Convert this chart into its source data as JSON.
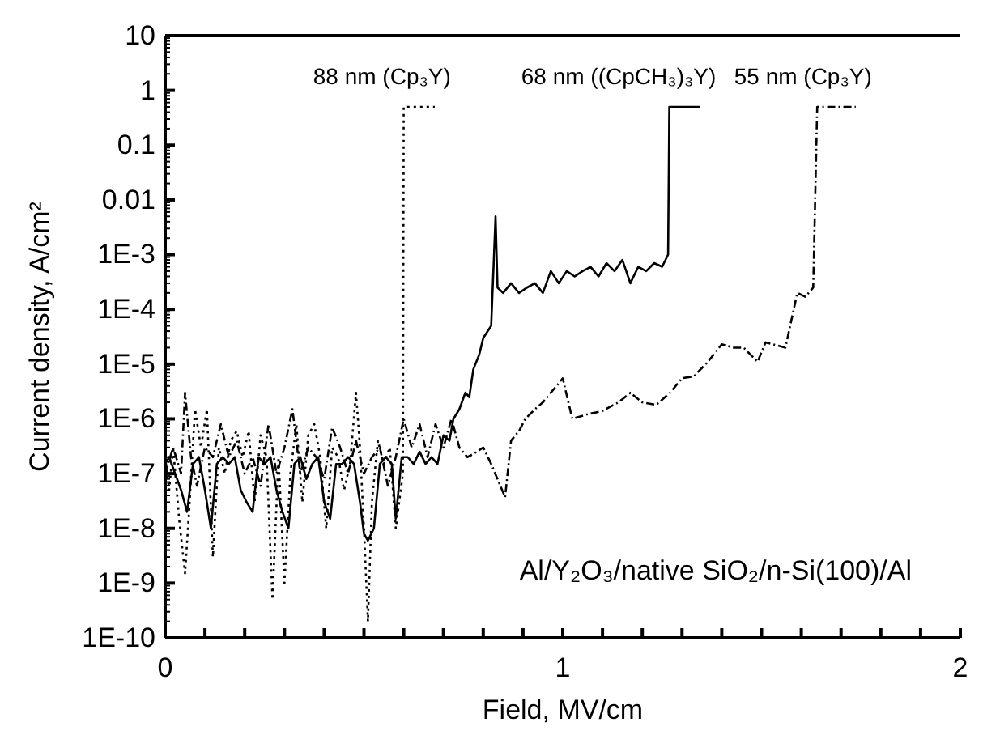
{
  "chart_data": {
    "type": "line",
    "xlabel": "Field, MV/cm",
    "ylabel": "Current density, A/cm²",
    "log": "y",
    "legend": false,
    "grid": false,
    "xlim": [
      0,
      2
    ],
    "xticks": [
      0,
      {
        "value": 0.1,
        "label": null
      },
      {
        "value": 0.2,
        "label": null
      },
      {
        "value": 0.3,
        "label": null
      },
      {
        "value": 0.4,
        "label": null
      },
      {
        "value": 0.5,
        "label": null
      },
      {
        "value": 0.6,
        "label": null
      },
      {
        "value": 0.7,
        "label": null
      },
      {
        "value": 0.8,
        "label": null
      },
      {
        "value": 0.9,
        "label": null
      },
      1,
      {
        "value": 1.1,
        "label": null
      },
      {
        "value": 1.2,
        "label": null
      },
      {
        "value": 1.3,
        "label": null
      },
      {
        "value": 1.4,
        "label": null
      },
      {
        "value": 1.5,
        "label": null
      },
      {
        "value": 1.6,
        "label": null
      },
      {
        "value": 1.7,
        "label": null
      },
      {
        "value": 1.8,
        "label": null
      },
      {
        "value": 1.9,
        "label": null
      },
      2
    ],
    "ylim": [
      1e-10,
      10
    ],
    "yticks": [
      {
        "value": 1e-10,
        "label": "1E-10"
      },
      {
        "value": 1e-09,
        "label": "1E-9"
      },
      {
        "value": 1e-08,
        "label": "1E-8"
      },
      {
        "value": 1e-07,
        "label": "1E-7"
      },
      {
        "value": 1e-06,
        "label": "1E-6"
      },
      {
        "value": 1e-05,
        "label": "1E-5"
      },
      {
        "value": 0.0001,
        "label": "1E-4"
      },
      {
        "value": 0.001,
        "label": "1E-3"
      },
      0.01,
      0.1,
      1,
      10
    ],
    "annotations": [
      "Al/Y₂O₃/native SiO₂/n-Si(100)/Al"
    ],
    "series": [
      {
        "name": "88 nm (Cp₃Y)",
        "color": "#000000",
        "line_style": "dotted",
        "x": [
          0,
          0.01,
          0.02,
          0.035,
          0.05,
          0.06,
          0.075,
          0.09,
          0.105,
          0.12,
          0.135,
          0.15,
          0.165,
          0.18,
          0.195,
          0.21,
          0.225,
          0.24,
          0.255,
          0.27,
          0.285,
          0.3,
          0.315,
          0.33,
          0.345,
          0.36,
          0.375,
          0.39,
          0.405,
          0.42,
          0.435,
          0.45,
          0.465,
          0.48,
          0.49,
          0.5,
          0.51,
          0.52,
          0.535,
          0.55,
          0.565,
          0.58,
          0.598,
          0.6,
          0.678
        ],
        "values": [
          2e-07,
          5e-08,
          3e-07,
          1.5e-08,
          1.5e-09,
          2e-08,
          1.5e-06,
          3e-07,
          1.5e-06,
          3e-09,
          3e-07,
          1e-07,
          4e-07,
          6e-07,
          2e-07,
          6e-07,
          3e-08,
          5e-07,
          2e-07,
          5e-10,
          2e-07,
          1e-09,
          1e-07,
          8e-07,
          3e-08,
          5e-07,
          8e-07,
          2e-07,
          1e-08,
          3e-07,
          2e-07,
          5e-08,
          1.5e-07,
          3e-06,
          3e-07,
          1e-08,
          2e-10,
          3e-08,
          4e-07,
          1.5e-07,
          3e-07,
          1e-08,
          1e-07,
          0.5,
          0.5
        ]
      },
      {
        "name": "68 nm ((CpCH₃)₃Y)",
        "color": "#000000",
        "line_style": "solid",
        "x": [
          0,
          0.01,
          0.025,
          0.04,
          0.055,
          0.07,
          0.085,
          0.1,
          0.115,
          0.13,
          0.145,
          0.16,
          0.175,
          0.19,
          0.205,
          0.22,
          0.235,
          0.25,
          0.265,
          0.28,
          0.295,
          0.31,
          0.325,
          0.34,
          0.355,
          0.37,
          0.385,
          0.4,
          0.415,
          0.43,
          0.445,
          0.46,
          0.475,
          0.49,
          0.5,
          0.51,
          0.525,
          0.54,
          0.555,
          0.57,
          0.58,
          0.595,
          0.61,
          0.625,
          0.64,
          0.655,
          0.67,
          0.685,
          0.7,
          0.715,
          0.725,
          0.74,
          0.755,
          0.765,
          0.775,
          0.79,
          0.8,
          0.82,
          0.831,
          0.836,
          0.85,
          0.87,
          0.89,
          0.91,
          0.93,
          0.95,
          0.97,
          0.99,
          1.01,
          1.03,
          1.05,
          1.07,
          1.09,
          1.11,
          1.13,
          1.15,
          1.17,
          1.19,
          1.21,
          1.23,
          1.25,
          1.265,
          1.268,
          1.345
        ],
        "values": [
          1.5e-07,
          2e-07,
          1e-07,
          5e-08,
          2e-08,
          1.5e-07,
          2e-07,
          5e-08,
          1e-08,
          1.5e-07,
          2e-07,
          1.5e-07,
          2e-07,
          5e-08,
          3e-08,
          2e-08,
          2e-07,
          1.5e-07,
          2e-07,
          5e-08,
          2e-08,
          1e-08,
          1.5e-07,
          2e-07,
          8e-08,
          1.5e-07,
          2e-07,
          3e-08,
          1.5e-08,
          1.5e-07,
          1.5e-07,
          2e-07,
          1.5e-07,
          3e-08,
          8e-09,
          6e-09,
          1e-08,
          1.5e-07,
          2e-07,
          1.5e-07,
          1.5e-08,
          2e-07,
          2e-07,
          1.5e-07,
          2.5e-07,
          1.5e-07,
          2e-07,
          1.5e-07,
          5e-07,
          4e-07,
          1e-06,
          1.5e-06,
          3e-06,
          2.5e-06,
          8e-06,
          1.5e-05,
          3e-05,
          5e-05,
          0.005,
          0.00025,
          0.0002,
          0.0003,
          0.0002,
          0.00025,
          0.0003,
          0.0002,
          0.0005,
          0.0003,
          0.0005,
          0.0004,
          0.0005,
          0.0006,
          0.0004,
          0.0007,
          0.0005,
          0.0008,
          0.0003,
          0.0006,
          0.0005,
          0.0007,
          0.0006,
          0.001,
          0.5,
          0.5
        ]
      },
      {
        "name": "55 nm (Cp₃Y)",
        "color": "#000000",
        "line_style": "dashed",
        "x": [
          0,
          0.02,
          0.04,
          0.05,
          0.065,
          0.08,
          0.1,
          0.12,
          0.14,
          0.16,
          0.18,
          0.2,
          0.22,
          0.24,
          0.26,
          0.28,
          0.3,
          0.32,
          0.34,
          0.36,
          0.38,
          0.4,
          0.42,
          0.44,
          0.46,
          0.48,
          0.5,
          0.52,
          0.54,
          0.56,
          0.58,
          0.6,
          0.62,
          0.64,
          0.66,
          0.68,
          0.7,
          0.72,
          0.74,
          0.76,
          0.776,
          0.8,
          0.82,
          0.855,
          0.87,
          0.89,
          0.906,
          0.93,
          0.95,
          0.97,
          1.0,
          1.024,
          1.06,
          1.1,
          1.14,
          1.17,
          1.2,
          1.235,
          1.27,
          1.3,
          1.33,
          1.365,
          1.4,
          1.43,
          1.455,
          1.49,
          1.51,
          1.56,
          1.59,
          1.61,
          1.63,
          1.64,
          1.737
        ],
        "values": [
          1e-07,
          3e-07,
          1e-07,
          3e-06,
          2e-07,
          6e-08,
          3e-07,
          2e-07,
          8e-07,
          2e-07,
          4e-07,
          1e-07,
          2e-07,
          6e-08,
          8e-07,
          1e-07,
          3e-07,
          1.5e-06,
          1e-07,
          3e-07,
          2e-07,
          8e-08,
          7e-07,
          3e-07,
          1e-07,
          4e-07,
          1e-07,
          2e-07,
          3e-07,
          6e-08,
          2e-07,
          1e-06,
          3e-07,
          8e-07,
          2e-07,
          8e-07,
          3e-07,
          1e-06,
          3e-07,
          2e-07,
          2.3e-07,
          3e-07,
          1.5e-07,
          3.7e-08,
          4e-07,
          6e-07,
          1e-06,
          1.5e-06,
          2e-06,
          3e-06,
          5.5e-06,
          1e-06,
          1.2e-06,
          1.4e-06,
          2e-06,
          3e-06,
          2e-06,
          1.8e-06,
          3e-06,
          5.5e-06,
          6e-06,
          1.1e-05,
          2.3e-05,
          2e-05,
          2e-05,
          1.1e-05,
          2.5e-05,
          2e-05,
          0.0002,
          0.00017,
          0.00025,
          0.5,
          0.5
        ]
      }
    ]
  }
}
